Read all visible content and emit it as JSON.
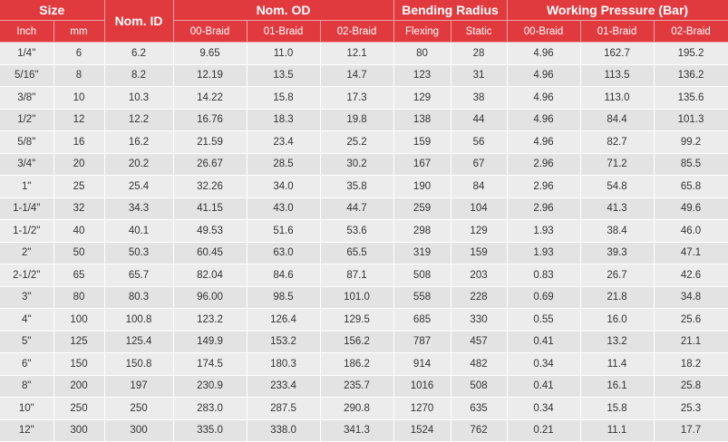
{
  "headers": {
    "size": "Size",
    "nom_id": "Nom. ID",
    "nom_od": "Nom. OD",
    "bending_radius": "Bending Radius",
    "working_pressure": "Working Pressure (Bar)",
    "sub": [
      "Inch",
      "mm",
      "00-Braid",
      "01-Braid",
      "02-Braid",
      "Flexing",
      "Static",
      "00-Braid",
      "01-Braid",
      "02-Braid"
    ]
  },
  "rows": [
    [
      "1/4\"",
      "6",
      "6.2",
      "9.65",
      "11.0",
      "12.1",
      "80",
      "28",
      "4.96",
      "162.7",
      "195.2"
    ],
    [
      "5/16\"",
      "8",
      "8.2",
      "12.19",
      "13.5",
      "14.7",
      "123",
      "31",
      "4.96",
      "113.5",
      "136.2"
    ],
    [
      "3/8\"",
      "10",
      "10.3",
      "14.22",
      "15.8",
      "17.3",
      "129",
      "38",
      "4.96",
      "113.0",
      "135.6"
    ],
    [
      "1/2\"",
      "12",
      "12.2",
      "16.76",
      "18.3",
      "19.8",
      "138",
      "44",
      "4.96",
      "84.4",
      "101.3"
    ],
    [
      "5/8\"",
      "16",
      "16.2",
      "21.59",
      "23.4",
      "25.2",
      "159",
      "56",
      "4.96",
      "82.7",
      "99.2"
    ],
    [
      "3/4\"",
      "20",
      "20.2",
      "26.67",
      "28.5",
      "30.2",
      "167",
      "67",
      "2.96",
      "71.2",
      "85.5"
    ],
    [
      "1\"",
      "25",
      "25.4",
      "32.26",
      "34.0",
      "35.8",
      "190",
      "84",
      "2.96",
      "54.8",
      "65.8"
    ],
    [
      "1-1/4\"",
      "32",
      "34.3",
      "41.15",
      "43.0",
      "44.7",
      "259",
      "104",
      "2.96",
      "41.3",
      "49.6"
    ],
    [
      "1-1/2\"",
      "40",
      "40.1",
      "49.53",
      "51.6",
      "53.6",
      "298",
      "129",
      "1.93",
      "38.4",
      "46.0"
    ],
    [
      "2\"",
      "50",
      "50.3",
      "60.45",
      "63.0",
      "65.5",
      "319",
      "159",
      "1.93",
      "39.3",
      "47.1"
    ],
    [
      "2-1/2\"",
      "65",
      "65.7",
      "82.04",
      "84.6",
      "87.1",
      "508",
      "203",
      "0.83",
      "26.7",
      "42.6"
    ],
    [
      "3\"",
      "80",
      "80.3",
      "96.00",
      "98.5",
      "101.0",
      "558",
      "228",
      "0.69",
      "21.8",
      "34.8"
    ],
    [
      "4\"",
      "100",
      "100.8",
      "123.2",
      "126.4",
      "129.5",
      "685",
      "330",
      "0.55",
      "16.0",
      "25.6"
    ],
    [
      "5\"",
      "125",
      "125.4",
      "149.9",
      "153.2",
      "156.2",
      "787",
      "457",
      "0.41",
      "13.2",
      "21.1"
    ],
    [
      "6\"",
      "150",
      "150.8",
      "174.5",
      "180.3",
      "186.2",
      "914",
      "482",
      "0.34",
      "11.4",
      "18.2"
    ],
    [
      "8\"",
      "200",
      "197",
      "230.9",
      "233.4",
      "235.7",
      "1016",
      "508",
      "0.41",
      "16.1",
      "25.8"
    ],
    [
      "10\"",
      "250",
      "250",
      "283.0",
      "287.5",
      "290.8",
      "1270",
      "635",
      "0.34",
      "15.8",
      "25.3"
    ],
    [
      "12\"",
      "300",
      "300",
      "335.0",
      "338.0",
      "341.3",
      "1524",
      "762",
      "0.21",
      "11.1",
      "17.7"
    ]
  ]
}
